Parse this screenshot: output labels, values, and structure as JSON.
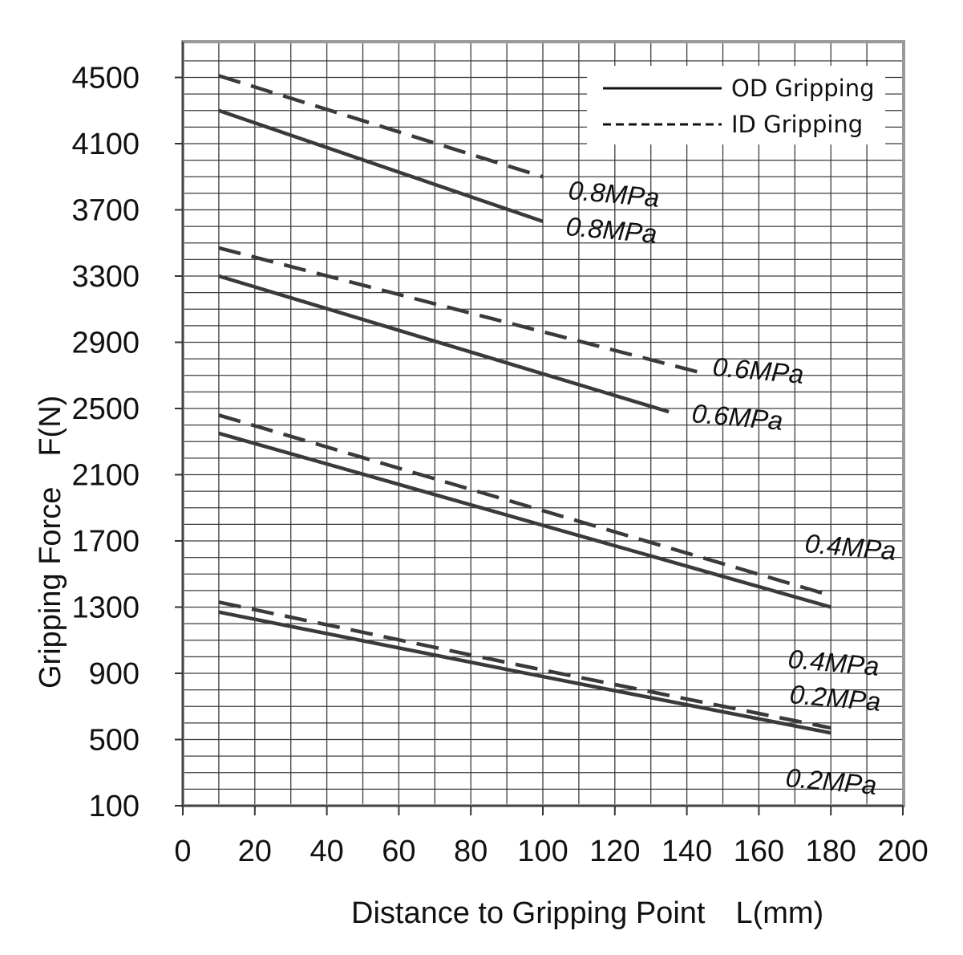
{
  "chart_data": {
    "type": "line",
    "title": "",
    "xlabel": "Distance to Gripping Point　L(mm)",
    "ylabel": "Gripping Force　F(N)",
    "xlim": [
      0,
      200
    ],
    "ylim": [
      100,
      4700
    ],
    "x_ticks": [
      0,
      20,
      40,
      60,
      80,
      100,
      120,
      140,
      160,
      180,
      200
    ],
    "y_ticks": [
      100,
      500,
      900,
      1300,
      1700,
      2100,
      2500,
      2900,
      3300,
      3700,
      4100,
      4500
    ],
    "x_tick_labels": [
      "0",
      "20",
      "40",
      "60",
      "80",
      "100",
      "120",
      "140",
      "160",
      "180",
      "200"
    ],
    "y_tick_labels": [
      "100",
      "500",
      "900",
      "1300",
      "1700",
      "2100",
      "2500",
      "2900",
      "3300",
      "3700",
      "4100",
      "4500"
    ],
    "grid": true,
    "legend": {
      "position": "top-right",
      "entries": [
        {
          "label": "OD Gripping",
          "style": "solid"
        },
        {
          "label": "ID Gripping",
          "style": "dashed"
        }
      ]
    },
    "series": [
      {
        "name": "0.8MPa",
        "group": "ID Gripping",
        "style": "dashed",
        "x": [
          10,
          100
        ],
        "y": [
          4510,
          3900
        ]
      },
      {
        "name": "0.8MPa",
        "group": "OD Gripping",
        "style": "solid",
        "x": [
          10,
          100
        ],
        "y": [
          4300,
          3630
        ]
      },
      {
        "name": "0.6MPa",
        "group": "ID Gripping",
        "style": "dashed",
        "x": [
          10,
          145
        ],
        "y": [
          3470,
          2710
        ]
      },
      {
        "name": "0.6MPa",
        "group": "OD Gripping",
        "style": "solid",
        "x": [
          10,
          135
        ],
        "y": [
          3300,
          2480
        ]
      },
      {
        "name": "0.4MPa",
        "group": "ID Gripping",
        "style": "dashed",
        "x": [
          10,
          180
        ],
        "y": [
          2460,
          1370
        ]
      },
      {
        "name": "0.4MPa",
        "group": "OD Gripping",
        "style": "solid",
        "x": [
          10,
          180
        ],
        "y": [
          2350,
          1300
        ]
      },
      {
        "name": "0.2MPa",
        "group": "ID Gripping",
        "style": "dashed",
        "x": [
          10,
          100,
          180
        ],
        "y": [
          1330,
          920,
          570
        ]
      },
      {
        "name": "0.2MPa",
        "group": "OD Gripping",
        "style": "solid",
        "x": [
          10,
          100,
          180
        ],
        "y": [
          1270,
          880,
          540
        ]
      }
    ],
    "annotations": [
      "0.8MPa",
      "0.8MPa",
      "0.6MPa",
      "0.6MPa",
      "0.4MPa",
      "0.4MPa",
      "0.2MPa",
      "0.2MPa"
    ]
  },
  "colors": {
    "line": "#3a3a3a",
    "grid": "#3c3c3c",
    "frame": "#9a9a9a",
    "text": "#111111",
    "background": "#ffffff"
  }
}
